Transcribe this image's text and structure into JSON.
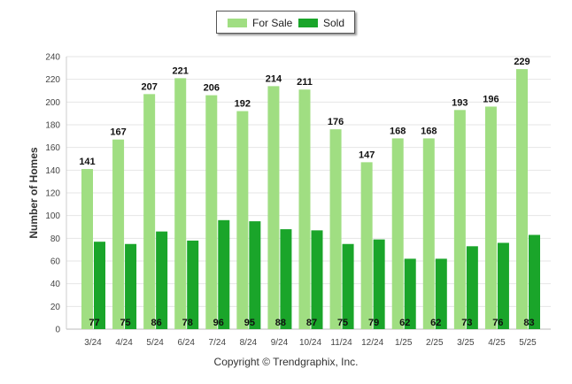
{
  "chart_data": {
    "type": "bar",
    "categories": [
      "3/24",
      "4/24",
      "5/24",
      "6/24",
      "7/24",
      "8/24",
      "9/24",
      "10/24",
      "11/24",
      "12/24",
      "1/25",
      "2/25",
      "3/25",
      "4/25",
      "5/25"
    ],
    "series": [
      {
        "name": "For Sale",
        "color": "#a0de82",
        "values": [
          141,
          167,
          207,
          221,
          206,
          192,
          214,
          211,
          176,
          147,
          168,
          168,
          193,
          196,
          229
        ]
      },
      {
        "name": "Sold",
        "color": "#1aa52a",
        "values": [
          77,
          75,
          86,
          78,
          96,
          95,
          88,
          87,
          75,
          79,
          62,
          62,
          73,
          76,
          83
        ]
      }
    ],
    "ylabel": "Number of Homes",
    "ylim": [
      0,
      240
    ],
    "yticks": [
      0,
      20,
      40,
      60,
      80,
      100,
      120,
      140,
      160,
      180,
      200,
      220,
      240
    ],
    "grid": true,
    "legend": "top-center"
  },
  "footer": {
    "copyright": "Copyright © Trendgraphix, Inc."
  }
}
